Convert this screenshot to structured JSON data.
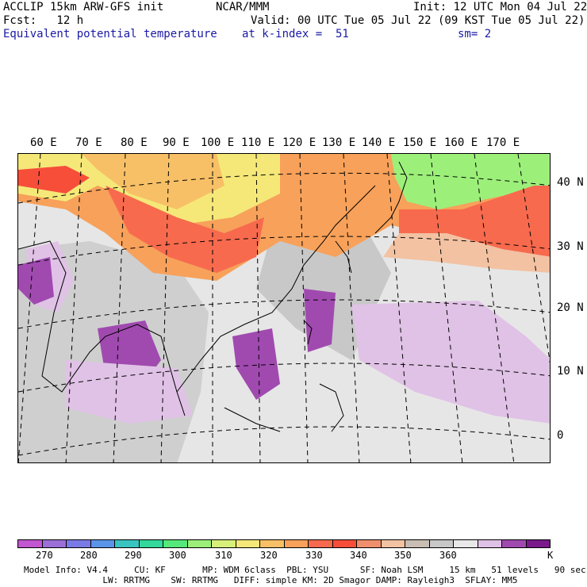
{
  "header": {
    "left1": "ACCLIP 15km ARW-GFS init",
    "left2": "Fcst:   12 h",
    "center1": "NCAR/MMM",
    "right1": "Init: 12 UTC Mon 04 Jul 22",
    "right2": "Valid: 00 UTC Tue 05 Jul 22 (09 KST Tue 05 Jul 22)",
    "field": "Equivalent potential temperature",
    "kindex": "at k-index =  51",
    "sm": "sm= 2"
  },
  "map": {
    "lon_labels": [
      "60 E",
      "70 E",
      "80 E",
      "90 E",
      "100 E",
      "110 E",
      "120 E",
      "130 E",
      "140 E",
      "150 E",
      "160 E",
      "170 E"
    ],
    "lat_labels": [
      "40 N",
      "30 N",
      "20 N",
      "10 N",
      "0"
    ]
  },
  "colorbar": {
    "unit": "K",
    "colors": [
      "#c255d0",
      "#9b6fd8",
      "#7a7ae6",
      "#5a94e8",
      "#39c4c0",
      "#33d89a",
      "#55e87a",
      "#9cf07a",
      "#d8f07a",
      "#f5e878",
      "#f7c066",
      "#f7a15a",
      "#f76a4e",
      "#f74e3a",
      "#f08f6e",
      "#f2c2a2",
      "#c8beb4",
      "#c8c8c8",
      "#e8e8e8",
      "#e0c2e6",
      "#a04ab0",
      "#7a1a8a"
    ],
    "labels": [
      "270",
      "280",
      "290",
      "300",
      "310",
      "320",
      "330",
      "340",
      "350",
      "360"
    ]
  },
  "info": {
    "line1": "Model Info: V4.4     CU: KF       MP: WDM 6class  PBL: YSU      SF: Noah LSM     15 km   51 levels   90 sec",
    "line2": "               LW: RRTMG    SW: RRTMG   DIFF: simple KM: 2D Smagor DAMP: Rayleigh3  SFLAY: MM5"
  }
}
